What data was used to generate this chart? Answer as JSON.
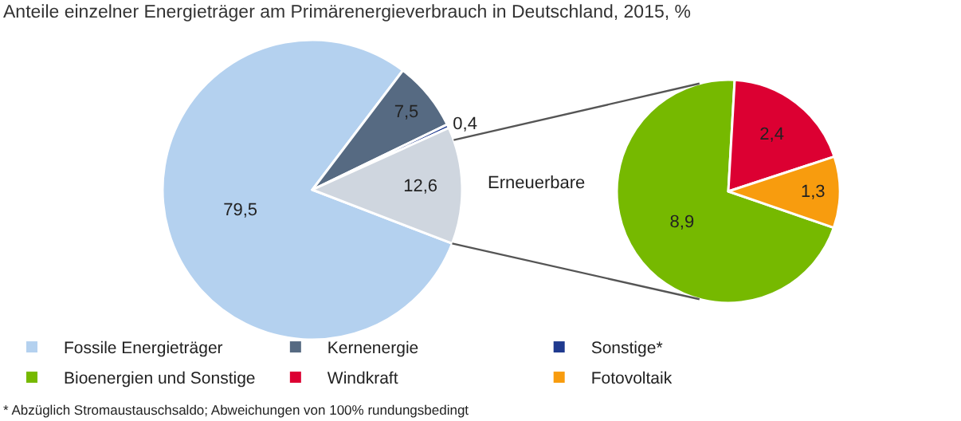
{
  "chart_data": [
    {
      "type": "pie",
      "title": "Anteile einzelner Energieträger am Primärenergieverbrauch in Deutschland, 2015, %",
      "categories": [
        "Fossile Energieträger",
        "Kernenergie",
        "Sonstige*",
        null
      ],
      "values": [
        79.5,
        7.5,
        0.4,
        12.6
      ],
      "colors": [
        "#b4d1ef",
        "#566a82",
        "#1f3a8f",
        "#cfd6df"
      ],
      "value_labels": [
        "79,5",
        "7,5",
        "0,4",
        "12,6"
      ],
      "legend": "bottom",
      "annotations": [
        "Erneuerbare",
        "* Abzüglich Stromaustauschsaldo; Abweichungen von 100% rundungsbedingt"
      ]
    },
    {
      "type": "pie",
      "categories": [
        "Bioenergien und Sonstige",
        "Windkraft",
        "Fotovoltaik"
      ],
      "values": [
        8.9,
        2.4,
        1.3
      ],
      "colors": [
        "#76b900",
        "#dc0032",
        "#f89c0e"
      ],
      "value_labels": [
        "8,9",
        "2,4",
        "1,3"
      ],
      "legend": "bottom"
    }
  ]
}
